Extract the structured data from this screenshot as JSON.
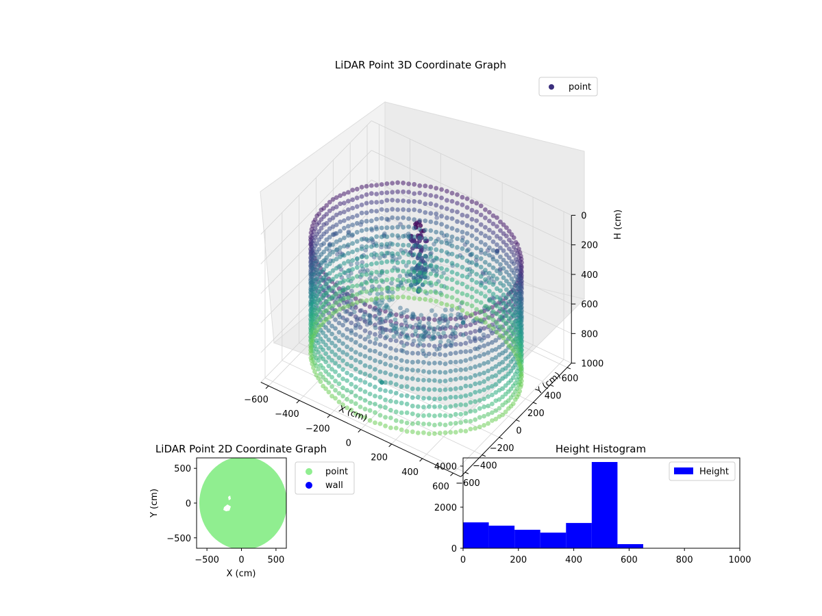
{
  "chart_data": [
    {
      "type": "scatter",
      "title": "LiDAR Point 3D Coordinate Graph",
      "xlabel": "X (cm)",
      "ylabel": "Y (cm)",
      "zlabel": "H (cm)",
      "xlim": [
        -650,
        650
      ],
      "ylim": [
        -650,
        650
      ],
      "zlim": [
        0,
        1000
      ],
      "z_inverted": true,
      "x_ticks": [
        -600,
        -400,
        -200,
        0,
        200,
        400,
        600
      ],
      "y_ticks": [
        -600,
        -400,
        -200,
        0,
        200,
        400,
        600
      ],
      "z_ticks": [
        0,
        200,
        400,
        600,
        800,
        1000
      ],
      "x_tick_labels": [
        "−600",
        "−400",
        "−200",
        "0",
        "200",
        "400",
        "600"
      ],
      "y_tick_labels": [
        "−600",
        "−400",
        "−200",
        "0",
        "200",
        "400",
        "600"
      ],
      "z_tick_labels": [
        "0",
        "200",
        "400",
        "600",
        "800",
        "1000"
      ],
      "legend": [
        "point"
      ],
      "legend_position": "top-right",
      "colormap": "viridis",
      "series": [
        {
          "name": "point",
          "shape": "cylindrical wall of points",
          "radius": 600,
          "height_range": [
            180,
            950
          ],
          "approx_points": 9200,
          "outliers": [
            {
              "x": 300,
              "y": 10,
              "h": 520
            },
            {
              "x": 120,
              "y": -620,
              "h": 640
            },
            {
              "x": 250,
              "y": 500,
              "h": 350
            }
          ]
        }
      ]
    },
    {
      "type": "scatter",
      "title": "LiDAR Point 2D Coordinate Graph",
      "xlabel": "X (cm)",
      "ylabel": "Y (cm)",
      "xlim": [
        -650,
        650
      ],
      "ylim": [
        -650,
        650
      ],
      "x_ticks": [
        -500,
        0,
        500
      ],
      "y_ticks": [
        -500,
        0,
        500
      ],
      "x_tick_labels": [
        "−500",
        "0",
        "500"
      ],
      "y_tick_labels": [
        "−500",
        "0",
        "500"
      ],
      "legend": [
        "point",
        "wall"
      ],
      "legend_position": "outside-right",
      "series": [
        {
          "name": "point",
          "color": "#90ee90",
          "shape": "filled disc",
          "radius": 600
        },
        {
          "name": "wall",
          "color": "#0000ff",
          "points": []
        }
      ],
      "holes": [
        {
          "x": -200,
          "y": 60
        },
        {
          "x": -180,
          "y": -70
        }
      ]
    },
    {
      "type": "bar",
      "title": "Height Histogram",
      "xlabel": "",
      "ylabel": "",
      "xlim": [
        0,
        1000
      ],
      "ylim": [
        0,
        4400
      ],
      "x_ticks": [
        0,
        200,
        400,
        600,
        800,
        1000
      ],
      "y_ticks": [
        0,
        2000,
        4000
      ],
      "x_tick_labels": [
        "0",
        "200",
        "400",
        "600",
        "800",
        "1000"
      ],
      "y_tick_labels": [
        "0",
        "2000",
        "4000"
      ],
      "legend": [
        "Height"
      ],
      "legend_position": "top-right",
      "color": "#0000ff",
      "bins": [
        {
          "start": 0,
          "end": 93,
          "value": 1260
        },
        {
          "start": 93,
          "end": 186,
          "value": 1100
        },
        {
          "start": 186,
          "end": 279,
          "value": 900
        },
        {
          "start": 279,
          "end": 372,
          "value": 760
        },
        {
          "start": 372,
          "end": 465,
          "value": 1230
        },
        {
          "start": 465,
          "end": 558,
          "value": 4200
        },
        {
          "start": 558,
          "end": 651,
          "value": 200
        }
      ]
    }
  ]
}
